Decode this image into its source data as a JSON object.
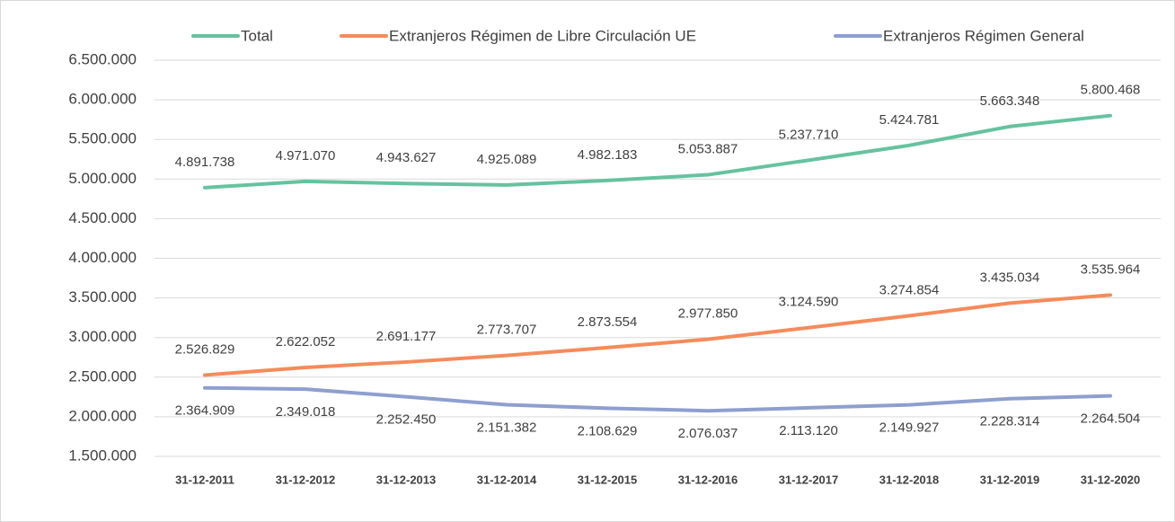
{
  "chart_data": {
    "type": "line",
    "categories": [
      "31-12-2011",
      "31-12-2012",
      "31-12-2013",
      "31-12-2014",
      "31-12-2015",
      "31-12-2016",
      "31-12-2017",
      "31-12-2018",
      "31-12-2019",
      "31-12-2020"
    ],
    "series": [
      {
        "name": "Total",
        "color": "#66c2a0",
        "values": [
          4891738,
          4971070,
          4943627,
          4925089,
          4982183,
          5053887,
          5237710,
          5424781,
          5663348,
          5800468
        ],
        "value_labels": [
          "4.891.738",
          "4.971.070",
          "4.943.627",
          "4.925.089",
          "4.982.183",
          "5.053.887",
          "5.237.710",
          "5.424.781",
          "5.663.348",
          "5.800.468"
        ]
      },
      {
        "name": "Extranjeros Régimen de Libre Circulación UE",
        "color": "#f58b5b",
        "values": [
          2526829,
          2622052,
          2691177,
          2773707,
          2873554,
          2977850,
          3124590,
          3274854,
          3435034,
          3535964
        ],
        "value_labels": [
          "2.526.829",
          "2.622.052",
          "2.691.177",
          "2.773.707",
          "2.873.554",
          "2.977.850",
          "3.124.590",
          "3.274.854",
          "3.435.034",
          "3.535.964"
        ]
      },
      {
        "name": "Extranjeros Régimen General",
        "color": "#8e9fcf",
        "values": [
          2364909,
          2349018,
          2252450,
          2151382,
          2108629,
          2076037,
          2113120,
          2149927,
          2228314,
          2264504
        ],
        "value_labels": [
          "2.364.909",
          "2.349.018",
          "2.252.450",
          "2.151.382",
          "2.108.629",
          "2.076.037",
          "2.113.120",
          "2.149.927",
          "2.228.314",
          "2.264.504"
        ]
      }
    ],
    "ylim": [
      1500000,
      6500000
    ],
    "yticks": [
      {
        "value": 1500000,
        "label": "1.500.000"
      },
      {
        "value": 2000000,
        "label": "2.000.000"
      },
      {
        "value": 2500000,
        "label": "2.500.000"
      },
      {
        "value": 3000000,
        "label": "3.000.000"
      },
      {
        "value": 3500000,
        "label": "3.500.000"
      },
      {
        "value": 4000000,
        "label": "4.000.000"
      },
      {
        "value": 4500000,
        "label": "4.500.000"
      },
      {
        "value": 5000000,
        "label": "5.000.000"
      },
      {
        "value": 5500000,
        "label": "5.500.000"
      },
      {
        "value": 6000000,
        "label": "6.000.000"
      },
      {
        "value": 6500000,
        "label": "6.500.000"
      }
    ],
    "grid": true,
    "legend": "top"
  }
}
